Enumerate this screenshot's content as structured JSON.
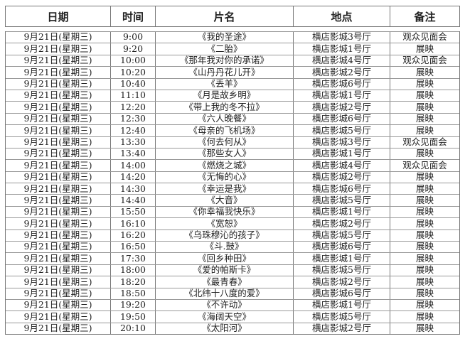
{
  "headers": [
    "日期",
    "时间",
    "片名",
    "地点",
    "备注"
  ],
  "rows": [
    [
      "9月21日(星期三)",
      "9:00",
      "《我的圣途》",
      "横店影城3号厅",
      "观众见面会"
    ],
    [
      "9月21日(星期三)",
      "9:20",
      "《二胎》",
      "横店影城1号厅",
      "展映"
    ],
    [
      "9月21日(星期三)",
      "10:00",
      "《那年我对你的承诺》",
      "横店影城4号厅",
      "观众见面会"
    ],
    [
      "9月21日(星期三)",
      "10:20",
      "《山丹丹花儿开》",
      "横店影城2号厅",
      "展映"
    ],
    [
      "9月21日(星期三)",
      "10:40",
      "《丢羊》",
      "横店影城6号厅",
      "展映"
    ],
    [
      "9月21日(星期三)",
      "11:10",
      "《月是故乡明》",
      "横店影城1号厅",
      "展映"
    ],
    [
      "9月21日(星期三)",
      "12:20",
      "《带上我的冬不拉》",
      "横店影城2号厅",
      "展映"
    ],
    [
      "9月21日(星期三)",
      "12:30",
      "《六人晚餐》",
      "横店影城6号厅",
      "展映"
    ],
    [
      "9月21日(星期三)",
      "12:40",
      "《母亲的飞机场》",
      "横店影城5号厅",
      "展映"
    ],
    [
      "9月21日(星期三)",
      "13:30",
      "《何去何从》",
      "横店影城3号厅",
      "观众见面会"
    ],
    [
      "9月21日(星期三)",
      "13:40",
      "《那些女人》",
      "横店影城1号厅",
      "展映"
    ],
    [
      "9月21日(星期三)",
      "14:00",
      "《燃烧之城》",
      "横店影城4号厅",
      "观众见面会"
    ],
    [
      "9月21日(星期三)",
      "14:20",
      "《无悔的心》",
      "横店影城2号厅",
      "展映"
    ],
    [
      "9月21日(星期三)",
      "14:30",
      "《幸运是我》",
      "横店影城6号厅",
      "展映"
    ],
    [
      "9月21日(星期三)",
      "14:40",
      "《大音》",
      "横店影城5号厅",
      "展映"
    ],
    [
      "9月21日(星期三)",
      "15:50",
      "《你幸福我快乐》",
      "横店影城1号厅",
      "展映"
    ],
    [
      "9月21日(星期三)",
      "16:10",
      "《宽恕》",
      "横店影城2号厅",
      "展映"
    ],
    [
      "9月21日(星期三)",
      "16:20",
      "《乌珠穆沁的孩子》",
      "横店影城5号厅",
      "展映"
    ],
    [
      "9月21日(星期三)",
      "16:50",
      "《斗.鼓》",
      "横店影城6号厅",
      "展映"
    ],
    [
      "9月21日(星期三)",
      "17:30",
      "《回乡种田》",
      "横店影城1号厅",
      "展映"
    ],
    [
      "9月21日(星期三)",
      "18:00",
      "《爱的帕斯卡》",
      "横店影城5号厅",
      "展映"
    ],
    [
      "9月21日(星期三)",
      "18:20",
      "《最青春》",
      "横店影城2号厅",
      "展映"
    ],
    [
      "9月21日(星期三)",
      "18:50",
      "《北纬十八度的爱》",
      "横店影城6号厅",
      "展映"
    ],
    [
      "9月21日(星期三)",
      "19:20",
      "《不许动》",
      "横店影城1号厅",
      "展映"
    ],
    [
      "9月21日(星期三)",
      "19:50",
      "《海阔天空》",
      "横店影城5号厅",
      "展映"
    ],
    [
      "9月21日(星期三)",
      "20:10",
      "《太阳河》",
      "横店影城2号厅",
      "展映"
    ]
  ]
}
